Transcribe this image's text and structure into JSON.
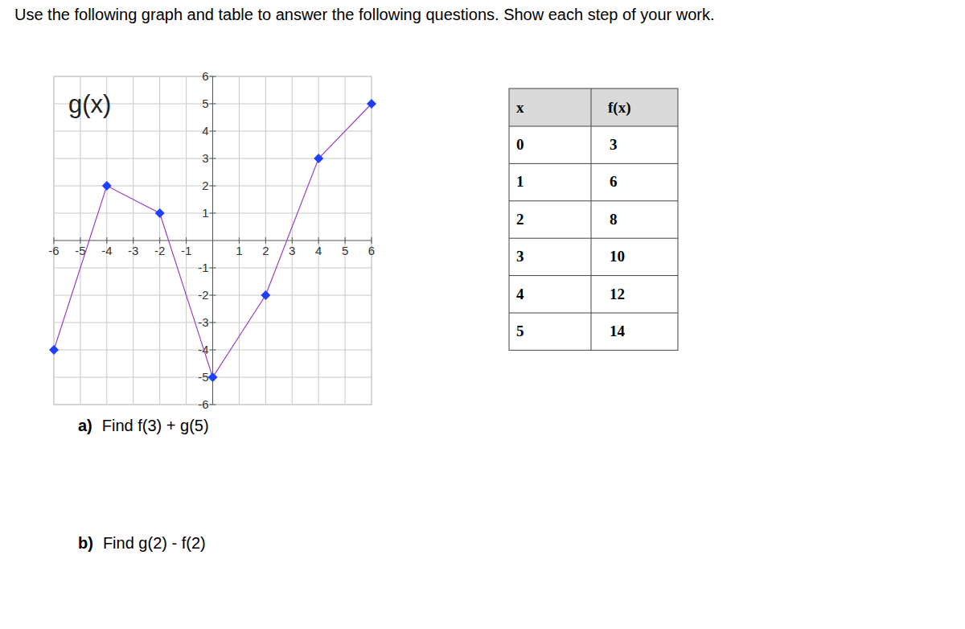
{
  "instruction": "Use the following graph and table to answer the following questions. Show each step of your work.",
  "chart_data": {
    "type": "line",
    "title": "g(x)",
    "x": [
      -6,
      -4,
      -2,
      0,
      2,
      4,
      6
    ],
    "values": [
      -4,
      2,
      1,
      -5,
      -2,
      3,
      5
    ],
    "xlim": [
      -6,
      6
    ],
    "ylim": [
      -6,
      6
    ],
    "xticks": [
      -6,
      -5,
      -4,
      -3,
      -2,
      -1,
      1,
      2,
      3,
      4,
      5,
      6
    ],
    "yticks": [
      -6,
      -5,
      -4,
      -3,
      -2,
      -1,
      1,
      2,
      3,
      4,
      5,
      6
    ],
    "grid": true,
    "color": "#9b3fc4",
    "marker": "diamond"
  },
  "table": {
    "header": [
      "x",
      "f(x)"
    ],
    "rows": [
      [
        0,
        3
      ],
      [
        1,
        6
      ],
      [
        2,
        8
      ],
      [
        3,
        10
      ],
      [
        4,
        12
      ],
      [
        5,
        14
      ]
    ]
  },
  "questions": [
    {
      "label": "a)",
      "text": "Find f(3) + g(5)"
    },
    {
      "label": "b)",
      "text": "Find g(2) - f(2)"
    }
  ]
}
